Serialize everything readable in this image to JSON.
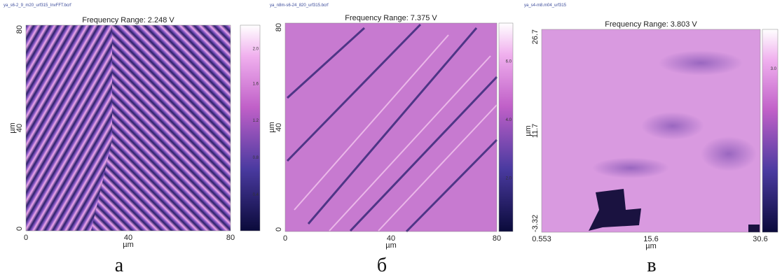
{
  "panels": [
    {
      "file": "ya_s6-2_9_m20_urf315_InvFFT.bcrf",
      "title": "Frequency Range:  2.248 V",
      "x_ticks": [
        "0",
        "40",
        "80"
      ],
      "x_label": "µm",
      "y_ticks": [
        "80",
        "40",
        "0"
      ],
      "y_label": "µm",
      "colorbar_ticks": [
        "2.0",
        "1.6",
        "1.2",
        "0.8",
        "0.4"
      ],
      "caption": "а"
    },
    {
      "file": "ya_n8m-s6-24_820_urf315.bcrf",
      "title": "Frequency Range:  7.375 V",
      "x_ticks": [
        "0",
        "40",
        "80"
      ],
      "x_label": "µm",
      "y_ticks": [
        "80",
        "40",
        "0"
      ],
      "y_label": "µm",
      "colorbar_ticks": [
        "6.0",
        "4.0",
        "2.0"
      ],
      "caption": "б"
    },
    {
      "file": "ya_s4-m8.m04_urf315",
      "title": "Frequency Range:  3.803 V",
      "x_ticks": [
        "0.553",
        "15.6",
        "30.6"
      ],
      "x_label": "µm",
      "y_ticks": [
        "26.7",
        "11.7",
        "-3.32"
      ],
      "y_label": "µm",
      "colorbar_ticks": [
        "3.0"
      ],
      "caption": "в"
    }
  ]
}
